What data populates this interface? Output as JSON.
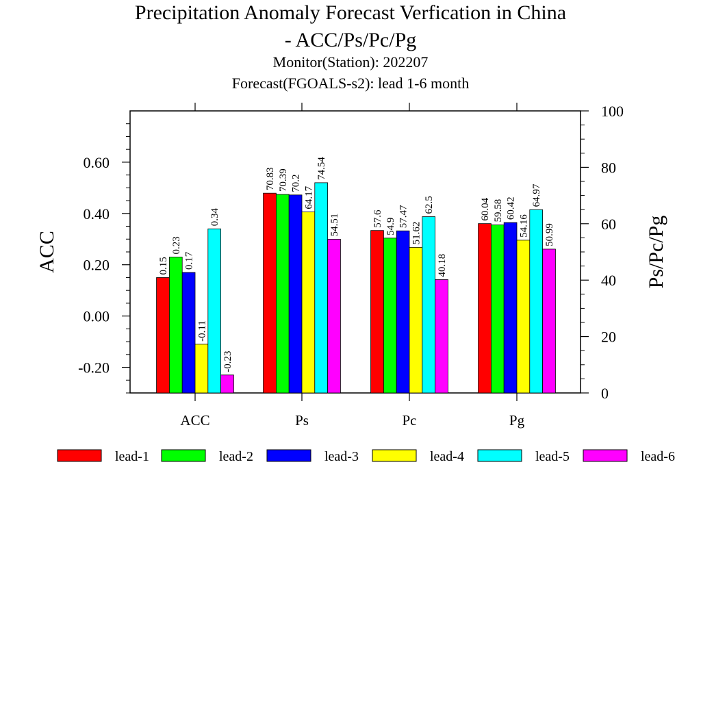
{
  "title": {
    "line1": "Precipitation Anomaly Forecast Verfication in China",
    "line2": "- ACC/Ps/Pc/Pg",
    "line3": "Monitor(Station): 202207",
    "line4": "Forecast(FGOALS-s2): lead 1-6 month"
  },
  "colors": {
    "lead-1": "#ff0000",
    "lead-2": "#00ff00",
    "lead-3": "#0000ff",
    "lead-4": "#ffff00",
    "lead-5": "#00ffff",
    "lead-6": "#ff00ff"
  },
  "chart_data": {
    "type": "bar",
    "categories": [
      "ACC",
      "Ps",
      "Pc",
      "Pg"
    ],
    "series": [
      {
        "name": "lead-1",
        "values": [
          0.15,
          70.83,
          57.6,
          60.04
        ],
        "labels": [
          "0.15",
          "70.83",
          "57.6",
          "60.04"
        ]
      },
      {
        "name": "lead-2",
        "values": [
          0.23,
          70.39,
          54.9,
          59.58
        ],
        "labels": [
          "0.23",
          "70.39",
          "54.9",
          "59.58"
        ]
      },
      {
        "name": "lead-3",
        "values": [
          0.17,
          70.2,
          57.47,
          60.42
        ],
        "labels": [
          "0.17",
          "70.2",
          "57.47",
          "60.42"
        ]
      },
      {
        "name": "lead-4",
        "values": [
          -0.11,
          64.17,
          51.62,
          54.16
        ],
        "labels": [
          "-0.11",
          "64.17",
          "51.62",
          "54.16"
        ]
      },
      {
        "name": "lead-5",
        "values": [
          0.34,
          74.54,
          62.5,
          64.97
        ],
        "labels": [
          "0.34",
          "74.54",
          "62.5",
          "64.97"
        ]
      },
      {
        "name": "lead-6",
        "values": [
          -0.23,
          54.51,
          40.18,
          50.99
        ],
        "labels": [
          "-0.23",
          "54.51",
          "40.18",
          "50.99"
        ]
      }
    ],
    "left_axis": {
      "label": "ACC",
      "range": [
        -0.3,
        0.8
      ],
      "ticks": [
        -0.2,
        0.0,
        0.2,
        0.4,
        0.6
      ],
      "tick_labels": [
        "-0.20",
        "0.00",
        "0.20",
        "0.40",
        "0.60"
      ],
      "applies_to": [
        "ACC"
      ]
    },
    "right_axis": {
      "label": "Ps/Pc/Pg",
      "range": [
        0,
        100
      ],
      "ticks": [
        0,
        20,
        40,
        60,
        80,
        100
      ],
      "tick_labels": [
        "0",
        "20",
        "40",
        "60",
        "80",
        "100"
      ],
      "applies_to": [
        "Ps",
        "Pc",
        "Pg"
      ]
    },
    "grid": false,
    "legend_position": "bottom"
  }
}
